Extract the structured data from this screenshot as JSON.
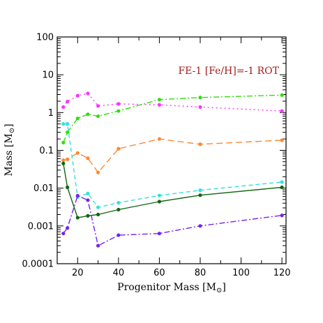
{
  "chart_data": {
    "type": "line",
    "title": "",
    "annotation": "FE-1 [Fe/H]=-1 ROT",
    "annotation_color": "#a61c1c",
    "xlabel_text": "Progenitor Mass [M",
    "xlabel_close": "]",
    "ylabel_text": "Mass [M",
    "ylabel_close": "]",
    "unit_symbol": "⊙",
    "xlim": [
      10,
      122
    ],
    "ylim": [
      0.0001,
      100
    ],
    "y_scale": "log",
    "grid": false,
    "x_ticks": [
      20,
      40,
      60,
      80,
      100,
      120
    ],
    "x_tick_labels": [
      "20",
      "40",
      "60",
      "80",
      "100",
      "120"
    ],
    "y_ticks": [
      0.0001,
      0.001,
      0.01,
      0.1,
      1,
      10,
      100
    ],
    "y_tick_labels": [
      "0.0001",
      "0.001",
      "0.01",
      "0.1",
      "1",
      "10",
      "100"
    ],
    "x": [
      13,
      15,
      20,
      25,
      30,
      40,
      60,
      80,
      120
    ],
    "series": [
      {
        "color": "#ff33ff",
        "dash": "2,4",
        "values": [
          1.4,
          1.95,
          2.8,
          3.2,
          1.5,
          1.7,
          1.6,
          1.4,
          1.1
        ]
      },
      {
        "color": "#33dd11",
        "dash": "8,3,2,3",
        "values": [
          0.16,
          0.3,
          0.7,
          0.9,
          0.8,
          1.1,
          2.2,
          2.5,
          2.9
        ]
      },
      {
        "color": "#ff8833",
        "dash": "9,5",
        "values": [
          0.055,
          0.058,
          0.085,
          0.062,
          0.026,
          0.11,
          0.2,
          0.145,
          0.185
        ]
      },
      {
        "color": "#33e0e0",
        "dash": "6,4",
        "values": [
          0.5,
          0.5,
          0.0058,
          0.0072,
          0.0031,
          0.0041,
          0.0064,
          0.0088,
          0.0145
        ]
      },
      {
        "color": "#116611",
        "dash": "",
        "values": [
          0.045,
          0.0105,
          0.00165,
          0.00185,
          0.002,
          0.0027,
          0.0044,
          0.0065,
          0.0105
        ]
      },
      {
        "color": "#7722ee",
        "dash": "8,3,2,3",
        "values": [
          0.00063,
          0.00088,
          0.0063,
          0.0048,
          0.0003,
          0.00057,
          0.00063,
          0.001,
          0.0019
        ]
      }
    ]
  }
}
